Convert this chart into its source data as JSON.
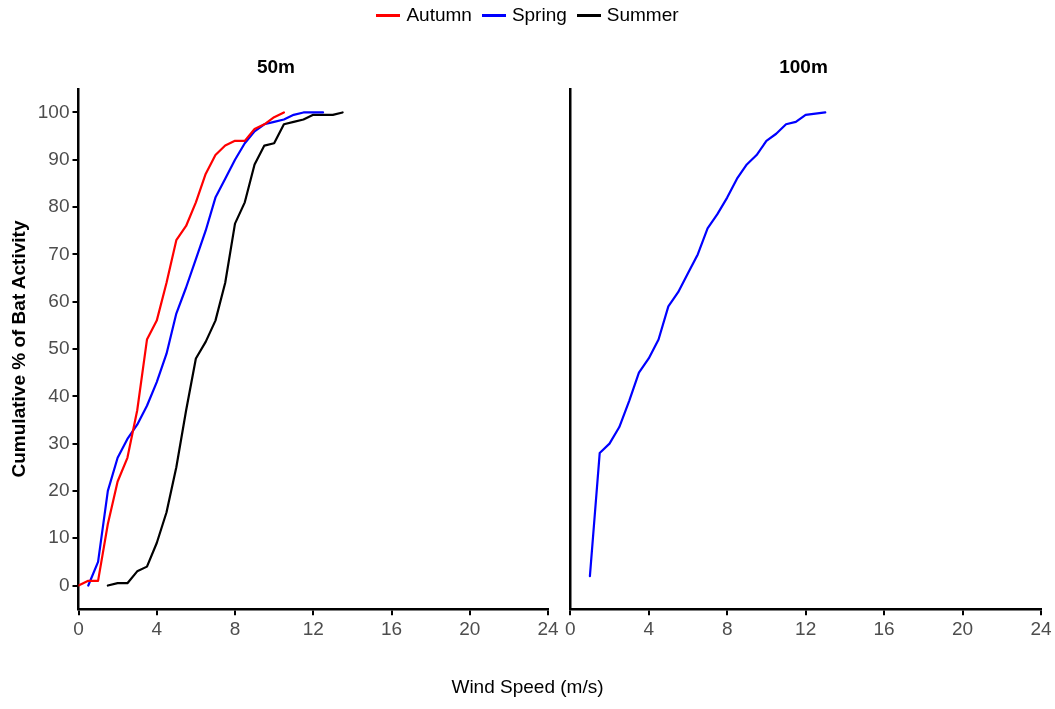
{
  "chart_data": [
    {
      "type": "line",
      "title": "50m",
      "xlabel": "Wind Speed (m/s)",
      "ylabel": "Cumulative % of Bat Activity",
      "xlim": [
        0,
        24
      ],
      "xticks": [
        0,
        4,
        8,
        12,
        16,
        20,
        24
      ],
      "ylim": [
        -5,
        105
      ],
      "yticks": [
        0,
        10,
        20,
        30,
        40,
        50,
        60,
        70,
        80,
        90,
        100
      ],
      "grid": false,
      "legend": "top",
      "marker": "none",
      "series": [
        {
          "name": "Autumn",
          "color": "#ff0000",
          "x": [
            0,
            0.5,
            1,
            1.5,
            2,
            2.5,
            3,
            3.5,
            4,
            4.5,
            5,
            5.5,
            6,
            6.5,
            7,
            7.5,
            8,
            8.5,
            9,
            9.5,
            10,
            10.5
          ],
          "values": [
            0,
            1,
            1,
            13,
            22,
            27,
            37,
            52,
            56,
            64,
            73,
            76,
            81,
            87,
            91,
            93,
            94,
            94,
            96.5,
            97.5,
            99,
            100
          ]
        },
        {
          "name": "Spring",
          "color": "#0000ff",
          "x": [
            0.5,
            1,
            1.5,
            2,
            2.5,
            3,
            3.5,
            4,
            4.5,
            5,
            5.5,
            6,
            6.5,
            7,
            7.5,
            8,
            8.5,
            9,
            9.5,
            10,
            10.5,
            11,
            11.5,
            12,
            12.5
          ],
          "values": [
            0,
            5,
            20,
            27,
            31,
            34,
            38,
            43,
            49,
            57.5,
            63,
            69,
            75,
            82,
            86,
            90,
            93.5,
            96,
            97.5,
            98,
            98.5,
            99.5,
            100,
            100,
            100
          ]
        },
        {
          "name": "Summer",
          "color": "#000000",
          "x": [
            1.5,
            2,
            2.5,
            3,
            3.5,
            4,
            4.5,
            5,
            5.5,
            6,
            6.5,
            7,
            7.5,
            8,
            8.5,
            9,
            9.5,
            10,
            10.5,
            11,
            11.5,
            12,
            12.5,
            13,
            13.5
          ],
          "values": [
            0,
            0.5,
            0.5,
            3,
            4,
            9,
            15.5,
            25,
            37,
            48,
            51.5,
            56,
            64,
            76.5,
            81,
            89,
            93,
            93.5,
            97.5,
            98,
            98.5,
            99.5,
            99.5,
            99.5,
            100
          ]
        }
      ]
    },
    {
      "type": "line",
      "title": "100m",
      "xlim": [
        0,
        24
      ],
      "xticks": [
        0,
        4,
        8,
        12,
        16,
        20,
        24
      ],
      "ylim": [
        -5,
        105
      ],
      "grid": false,
      "tick_labels": "x",
      "marker": "none",
      "series": [
        {
          "name": "Spring",
          "color": "#0000ff",
          "x": [
            1,
            1.5,
            2,
            2.5,
            3,
            3.5,
            4,
            4.5,
            5,
            5.5,
            6,
            6.5,
            7,
            7.5,
            8,
            8.5,
            9,
            9.5,
            10,
            10.5,
            11,
            11.5,
            12,
            13
          ],
          "values": [
            2,
            28,
            30,
            33.5,
            39,
            45,
            48,
            52,
            59,
            62,
            66,
            70,
            75.5,
            78.5,
            82,
            86,
            89,
            91,
            94,
            95.5,
            97.5,
            98,
            99.5,
            100
          ]
        }
      ]
    }
  ]
}
